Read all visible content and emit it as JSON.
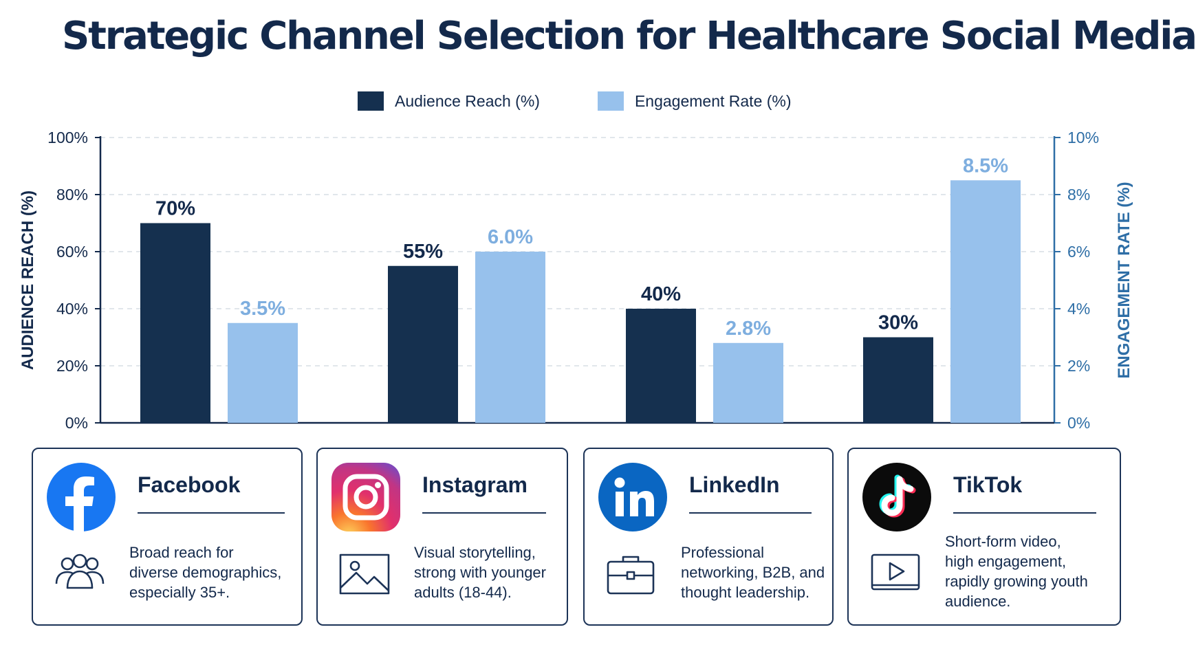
{
  "title": "Strategic Channel Selection for Healthcare Social Media",
  "colors": {
    "reach": "#15304f",
    "engagement": "#97c1ec",
    "reach_label": "#13294b",
    "engagement_label": "#7eaedf",
    "right_axis": "#2e6ea6"
  },
  "legend": {
    "reach": "Audience Reach (%)",
    "engagement": "Engagement Rate (%)"
  },
  "chart_data": {
    "type": "bar",
    "categories": [
      "Facebook",
      "Instagram",
      "LinkedIn",
      "TikTok"
    ],
    "series": [
      {
        "name": "Audience Reach (%)",
        "axis": "left",
        "values": [
          70,
          55,
          40,
          30
        ],
        "labels": [
          "70%",
          "55%",
          "40%",
          "30%"
        ]
      },
      {
        "name": "Engagement Rate (%)",
        "axis": "right",
        "values": [
          3.5,
          6.0,
          2.8,
          8.5
        ],
        "labels": [
          "3.5%",
          "6.0%",
          "2.8%",
          "8.5%"
        ]
      }
    ],
    "ylabel": "AUDIENCE REACH (%)",
    "ylabel_right": "ENGAGEMENT RATE (%)",
    "ylim": [
      0,
      100
    ],
    "ylim_right": [
      0,
      10
    ],
    "yticks": [
      "0%",
      "20%",
      "40%",
      "60%",
      "80%",
      "100%"
    ],
    "yticks_right": [
      "0%",
      "2%",
      "4%",
      "6%",
      "8%",
      "10%"
    ],
    "grid": true,
    "legend_position": "top-center"
  },
  "channels": [
    {
      "name": "Facebook",
      "logo": "facebook-logo-icon",
      "feature_icon": "people-group-icon",
      "desc": [
        "Broad reach for",
        "diverse demographics,",
        "especially 35+."
      ]
    },
    {
      "name": "Instagram",
      "logo": "instagram-logo-icon",
      "feature_icon": "image-icon",
      "desc": [
        "Visual storytelling,",
        "strong with younger",
        "adults (18-44)."
      ]
    },
    {
      "name": "LinkedIn",
      "logo": "linkedin-logo-icon",
      "feature_icon": "briefcase-icon",
      "desc": [
        "Professional",
        "networking, B2B, and",
        "thought leadership."
      ]
    },
    {
      "name": "TikTok",
      "logo": "tiktok-logo-icon",
      "feature_icon": "video-play-icon",
      "desc": [
        "Short-form video,",
        "high engagement,",
        "rapidly growing youth",
        "audience."
      ]
    }
  ]
}
